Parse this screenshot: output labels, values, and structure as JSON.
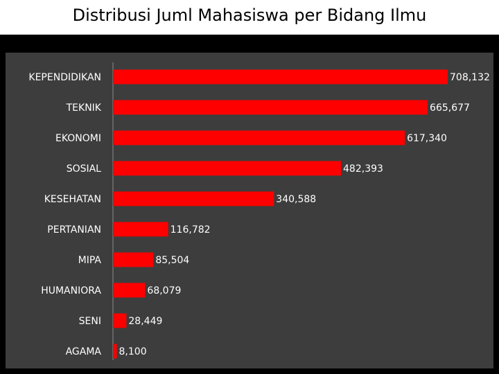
{
  "colors": {
    "background": "#000000",
    "plot_area": "#3d3d3d",
    "bar": "#ff0000",
    "text": "#ffffff"
  },
  "chart_data": {
    "type": "bar",
    "orientation": "horizontal",
    "title": "Distribusi Juml Mahasiswa per Bidang Ilmu",
    "xlabel": "",
    "ylabel": "",
    "grid": false,
    "legend": "none",
    "xlim": [
      0,
      720000
    ],
    "categories": [
      "KEPENDIDIKAN",
      "TEKNIK",
      "EKONOMI",
      "SOSIAL",
      "KESEHATAN",
      "PERTANIAN",
      "MIPA",
      "HUMANIORA",
      "SENI",
      "AGAMA"
    ],
    "values": [
      708132,
      665677,
      617340,
      482393,
      340588,
      116782,
      85504,
      68079,
      28449,
      8100
    ],
    "value_labels": [
      "708,132",
      "665,677",
      "617,340",
      "482,393",
      "340,588",
      "116,782",
      "85,504",
      "68,079",
      "28,449",
      "8,100"
    ]
  }
}
